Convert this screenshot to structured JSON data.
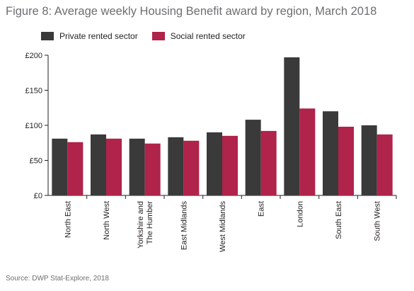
{
  "title": "Figure 8: Average weekly Housing Benefit award by region, March 2018",
  "source": "Source: DWP Stat-Explore, 2018",
  "colors": {
    "private": "#3a3a3a",
    "social": "#b0234a",
    "axis": "#231f20",
    "grid": "#d9d9d9"
  },
  "chart_data": {
    "type": "bar",
    "title": "Figure 8: Average weekly Housing Benefit award by region, March 2018",
    "xlabel": "",
    "ylabel": "",
    "ylim": [
      0,
      200
    ],
    "yticks": [
      0,
      50,
      100,
      150,
      200
    ],
    "ytick_labels": [
      "£0",
      "£50",
      "£100",
      "£150",
      "£200"
    ],
    "grid": false,
    "legend": "top-left",
    "categories": [
      [
        "North East"
      ],
      [
        "North West"
      ],
      [
        "Yorkshire and",
        "The Humber"
      ],
      [
        "East Midlands"
      ],
      [
        "West Midlands"
      ],
      [
        "East"
      ],
      [
        "London"
      ],
      [
        "South East"
      ],
      [
        "South West"
      ]
    ],
    "series": [
      {
        "name": "Private rented sector",
        "values": [
          81,
          87,
          81,
          83,
          90,
          108,
          197,
          120,
          100
        ]
      },
      {
        "name": "Social rented sector",
        "values": [
          76,
          81,
          74,
          78,
          85,
          92,
          124,
          98,
          87
        ]
      }
    ]
  }
}
